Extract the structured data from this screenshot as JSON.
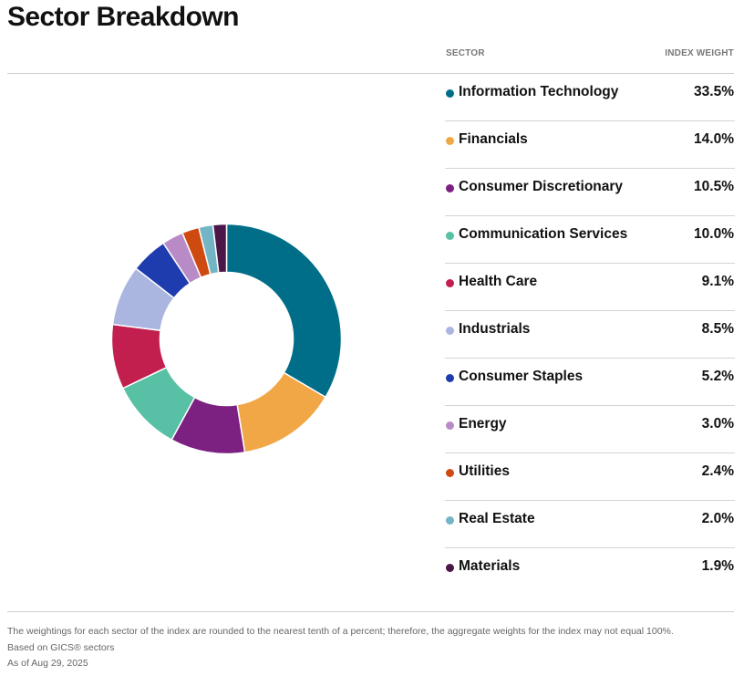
{
  "page": {
    "title": "Sector Breakdown",
    "column_sector": "SECTOR",
    "column_weight": "INDEX WEIGHT"
  },
  "chart_data": {
    "type": "pie",
    "style": "donut",
    "legend": "right",
    "categories": [
      "Information Technology",
      "Financials",
      "Consumer Discretionary",
      "Communication Services",
      "Health Care",
      "Industrials",
      "Consumer Staples",
      "Energy",
      "Utilities",
      "Real Estate",
      "Materials"
    ],
    "values": [
      33.5,
      14.0,
      10.5,
      10.0,
      9.1,
      8.5,
      5.2,
      3.0,
      2.4,
      2.0,
      1.9
    ],
    "value_labels": [
      "33.5%",
      "14.0%",
      "10.5%",
      "10.0%",
      "9.1%",
      "8.5%",
      "5.2%",
      "3.0%",
      "2.4%",
      "2.0%",
      "1.9%"
    ],
    "colors": [
      "#006e89",
      "#f2a747",
      "#7c2082",
      "#57c0a5",
      "#c21f4e",
      "#aab6df",
      "#1f3caf",
      "#b98bc6",
      "#cf4a10",
      "#74b5c5",
      "#4c1748"
    ]
  },
  "footnotes": {
    "line1": "The weightings for each sector of the index are rounded to the nearest tenth of a percent; therefore, the aggregate weights for the index may not equal 100%.",
    "line2": "Based on GICS® sectors",
    "line3": "As of Aug 29, 2025"
  }
}
